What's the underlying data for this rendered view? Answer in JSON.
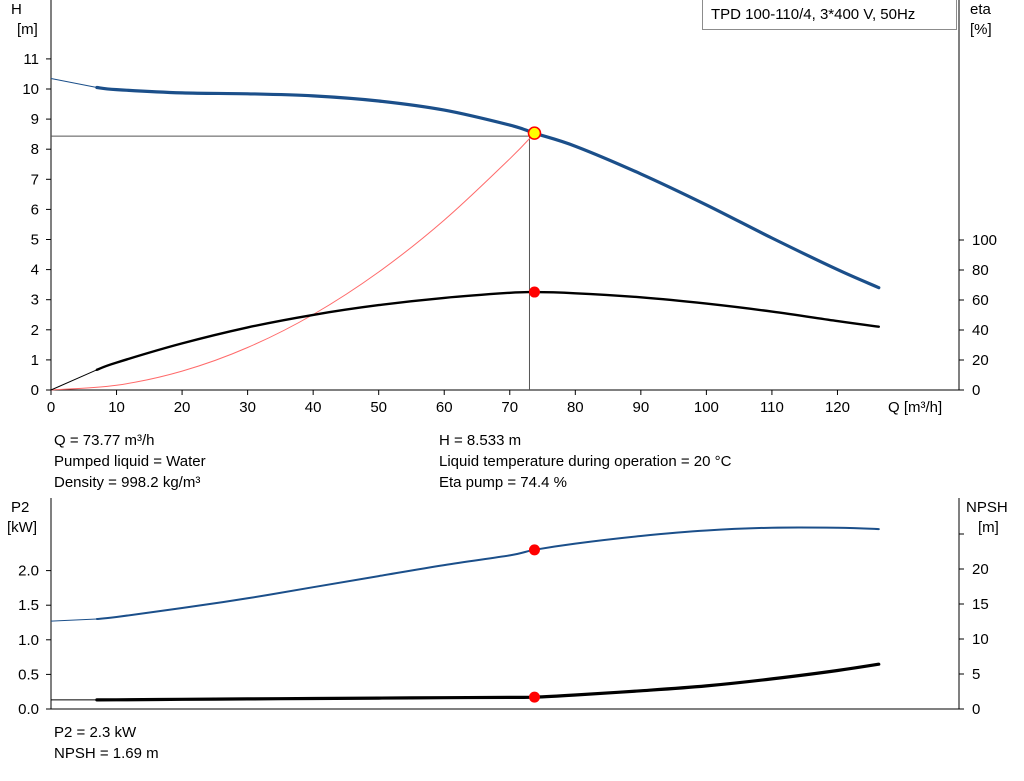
{
  "title": "TPD 100-110/4, 3*400 V, 50Hz",
  "info_top": {
    "left": [
      "Q = 73.77 m³/h",
      "Pumped liquid = Water",
      "Density = 998.2 kg/m³"
    ],
    "right": [
      "H = 8.533 m",
      "Liquid temperature during operation = 20 °C",
      "Eta pump = 74.4 %"
    ]
  },
  "info_bottom": [
    "P2 = 2.3 kW",
    "NPSH = 1.69 m"
  ],
  "colors": {
    "head": "#1b4f8a",
    "eta": "#000000",
    "system": "#ff6a6a",
    "op_marker": "#ff0000",
    "op_fill": "#ffff00",
    "axis": "#000000",
    "grid": "#555555"
  },
  "chart_data": [
    {
      "type": "line",
      "x_axis": {
        "label": "Q [m³/h]",
        "ticks": [
          0,
          10,
          20,
          30,
          40,
          50,
          60,
          70,
          80,
          90,
          100,
          110,
          120
        ],
        "range": [
          0,
          130
        ]
      },
      "y_left": {
        "label_top": "H",
        "label_unit": "[m]",
        "ticks": [
          0,
          1,
          2,
          3,
          4,
          5,
          6,
          7,
          8,
          9,
          10,
          11
        ],
        "range": [
          0,
          11
        ]
      },
      "y_right": {
        "label_top": "eta",
        "label_unit": "[%]",
        "ticks": [
          0,
          20,
          40,
          60,
          80,
          100
        ],
        "range": [
          0,
          100
        ]
      },
      "series": [
        {
          "key": "head",
          "axis": "left",
          "x": [
            0,
            7,
            10,
            20,
            30,
            40,
            50,
            60,
            70,
            73.77,
            80,
            90,
            100,
            110,
            120,
            126.3
          ],
          "y": [
            10.35,
            10.05,
            9.98,
            9.87,
            9.84,
            9.77,
            9.6,
            9.3,
            8.8,
            8.533,
            8.1,
            7.18,
            6.15,
            5.05,
            4.0,
            3.4
          ]
        },
        {
          "key": "eta",
          "axis": "right",
          "x": [
            0,
            7,
            10,
            20,
            30,
            40,
            50,
            60,
            70,
            73.77,
            80,
            90,
            100,
            110,
            120,
            126.3
          ],
          "y": [
            0,
            13.5,
            18.3,
            31.1,
            41.7,
            50.1,
            56.6,
            61.4,
            64.8,
            65.3,
            64.5,
            61.8,
            57.6,
            52.3,
            45.9,
            42.2
          ]
        },
        {
          "key": "system",
          "axis": "left",
          "x": [
            0,
            10,
            20,
            30,
            40,
            50,
            60,
            70,
            73.77
          ],
          "y": [
            0,
            0.157,
            0.627,
            1.411,
            2.508,
            3.919,
            5.643,
            7.681,
            8.533
          ]
        }
      ],
      "operating_point": {
        "x": 73.77,
        "head": 8.533,
        "eta": 65.3
      }
    },
    {
      "type": "line",
      "x_axis": {
        "range": [
          0,
          130
        ]
      },
      "y_left": {
        "label_top": "P2",
        "label_unit": "[kW]",
        "ticks": [
          0.0,
          0.5,
          1.0,
          1.5,
          2.0
        ],
        "tick_labels": [
          "0.0",
          "0.5",
          "1.0",
          "1.5",
          "2.0"
        ],
        "range": [
          0,
          2.65
        ]
      },
      "y_right": {
        "label_top": "NPSH",
        "label_unit": "[m]",
        "ticks": [
          0,
          5,
          10,
          15,
          20,
          25
        ],
        "tick_labels": [
          "0",
          "5",
          "10",
          "15",
          "20",
          ""
        ],
        "range": [
          0,
          26.5
        ]
      },
      "series": [
        {
          "key": "p2",
          "axis": "left",
          "x": [
            0,
            7,
            10,
            20,
            30,
            40,
            50,
            60,
            70,
            73.77,
            80,
            90,
            100,
            110,
            120,
            126.3
          ],
          "y": [
            1.27,
            1.3,
            1.33,
            1.46,
            1.6,
            1.76,
            1.92,
            2.08,
            2.22,
            2.3,
            2.39,
            2.5,
            2.58,
            2.62,
            2.62,
            2.6
          ]
        },
        {
          "key": "npsh",
          "axis": "right",
          "x": [
            0,
            7,
            10,
            20,
            30,
            40,
            50,
            60,
            70,
            73.77,
            80,
            90,
            100,
            110,
            120,
            126.3
          ],
          "y": [
            1.3,
            1.3,
            1.32,
            1.38,
            1.44,
            1.5,
            1.56,
            1.62,
            1.66,
            1.69,
            2.0,
            2.6,
            3.3,
            4.3,
            5.5,
            6.4
          ]
        }
      ],
      "operating_point": {
        "x": 73.77,
        "p2": 2.3,
        "npsh": 1.69
      }
    }
  ]
}
